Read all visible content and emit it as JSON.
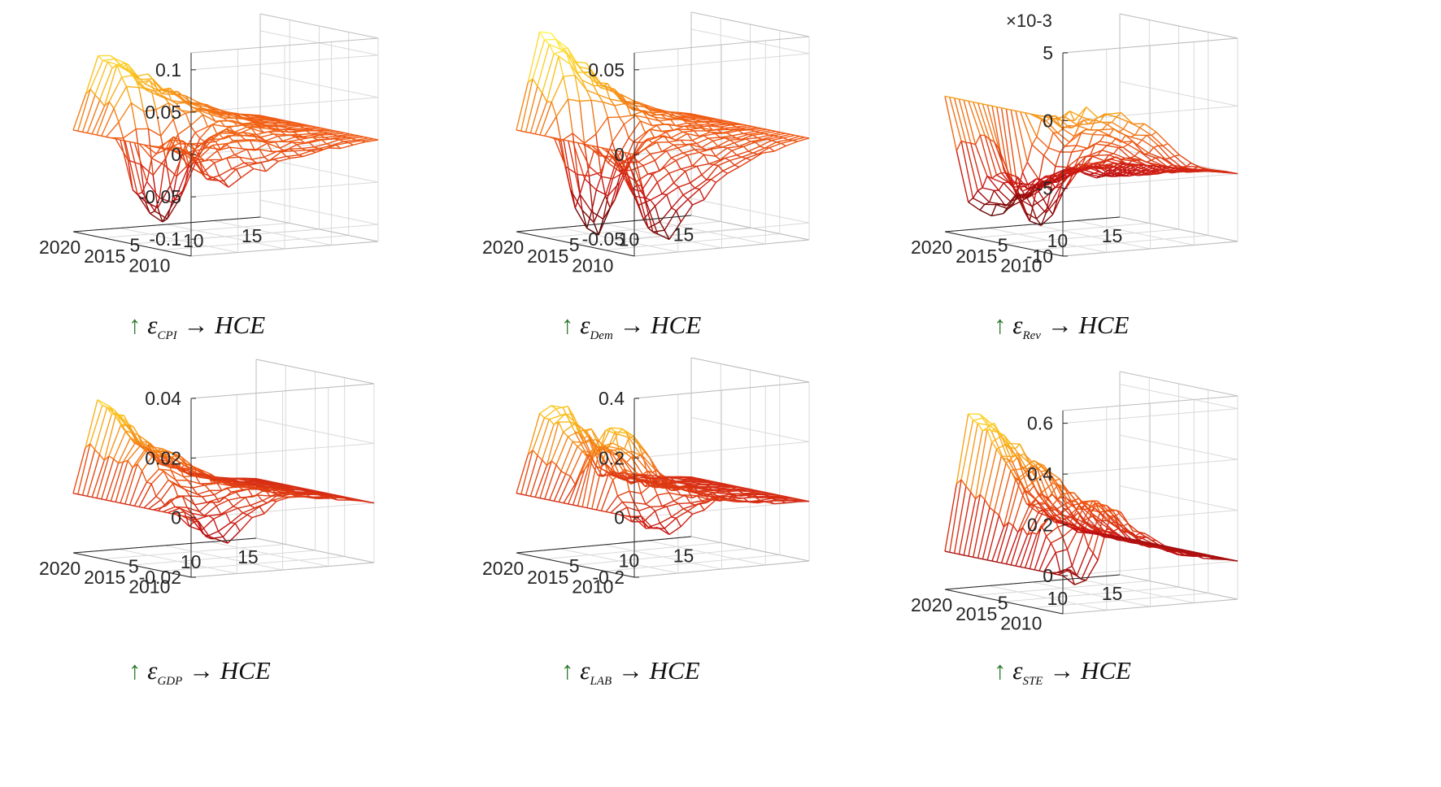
{
  "figure": {
    "panels": [
      {
        "id": "cpi",
        "caption": {
          "arrow": "↑",
          "symbol": "ε",
          "subscript": "CPI",
          "to": "→",
          "target": "HCE"
        }
      },
      {
        "id": "dem",
        "caption": {
          "arrow": "↑",
          "symbol": "ε",
          "subscript": "Dem",
          "to": "→",
          "target": "HCE"
        }
      },
      {
        "id": "rev",
        "caption": {
          "arrow": "↑",
          "symbol": "ε",
          "subscript": "Rev",
          "to": "→",
          "target": "HCE"
        }
      },
      {
        "id": "gdp",
        "caption": {
          "arrow": "↑",
          "symbol": "ε",
          "subscript": "GDP",
          "to": "→",
          "target": "HCE"
        }
      },
      {
        "id": "lab",
        "caption": {
          "arrow": "↑",
          "symbol": "ε",
          "subscript": "LAB",
          "to": "→",
          "target": "HCE"
        }
      },
      {
        "id": "ste",
        "caption": {
          "arrow": "↑",
          "symbol": "ε",
          "subscript": "STE",
          "to": "→",
          "target": "HCE"
        }
      }
    ]
  },
  "chart_data": [
    {
      "type": "surface",
      "title": "↑ ε_CPI → HCE",
      "year_ticks": [
        "2010",
        "2015",
        "2020"
      ],
      "horizon_ticks": [
        "5",
        "10",
        "15"
      ],
      "z_ticks": [
        "0.1",
        "0.05",
        "0",
        "-0.05",
        "-0.1"
      ],
      "zlim": [
        -0.12,
        0.12
      ],
      "z_exponent": "",
      "profile_early": [
        0.0,
        0.1,
        0.07,
        0.05,
        0.03,
        0.015,
        0.005,
        0.0
      ],
      "profile_late": [
        0.0,
        -0.04,
        -0.03,
        -0.02,
        -0.015,
        -0.008,
        -0.003,
        0.0
      ],
      "mid_peak": {
        "year_frac": 0.45,
        "value": -0.13
      }
    },
    {
      "type": "surface",
      "title": "↑ ε_Dem → HCE",
      "year_ticks": [
        "2010",
        "2015",
        "2020"
      ],
      "horizon_ticks": [
        "5",
        "10",
        "15"
      ],
      "z_ticks": [
        "0.05",
        "0",
        "-0.05"
      ],
      "zlim": [
        -0.06,
        0.06
      ],
      "z_exponent": "",
      "profile_early": [
        0.0,
        0.065,
        0.045,
        0.03,
        0.015,
        0.008,
        0.003,
        0.0
      ],
      "profile_late": [
        0.0,
        -0.055,
        -0.04,
        -0.025,
        -0.015,
        -0.008,
        -0.003,
        0.0
      ],
      "mid_peak": {
        "year_frac": 0.4,
        "value": -0.07
      }
    },
    {
      "type": "surface",
      "title": "↑ ε_Rev → HCE",
      "year_ticks": [
        "2010",
        "2015",
        "2020"
      ],
      "horizon_ticks": [
        "5",
        "10",
        "15"
      ],
      "z_ticks": [
        "5",
        "0",
        "-5",
        "-10"
      ],
      "zlim": [
        -10,
        5
      ],
      "z_exponent": "×10-3",
      "profile_early": [
        0.0,
        -8,
        -9,
        -8,
        -7,
        -6,
        -7,
        -6
      ],
      "profile_late": [
        0.0,
        0.5,
        0.2,
        -0.5,
        -2,
        -4,
        -4.5,
        -5
      ],
      "mid_peak": {
        "year_frac": 0.5,
        "value": -9.5
      }
    },
    {
      "type": "surface",
      "title": "↑ ε_GDP → HCE",
      "year_ticks": [
        "2010",
        "2015",
        "2020"
      ],
      "horizon_ticks": [
        "5",
        "10",
        "15"
      ],
      "z_ticks": [
        "0.04",
        "0.02",
        "0",
        "-0.02"
      ],
      "zlim": [
        -0.02,
        0.04
      ],
      "z_exponent": "",
      "profile_early": [
        0.0,
        0.035,
        0.02,
        0.01,
        0.005,
        0.002,
        0.001,
        0.0
      ],
      "profile_late": [
        0.0,
        -0.01,
        -0.005,
        0.002,
        0.004,
        0.003,
        0.002,
        0.0
      ],
      "mid_peak": {
        "year_frac": 0.4,
        "value": 0.018
      }
    },
    {
      "type": "surface",
      "title": "↑ ε_LAB → HCE",
      "year_ticks": [
        "2010",
        "2015",
        "2020"
      ],
      "horizon_ticks": [
        "5",
        "10",
        "15"
      ],
      "z_ticks": [
        "0.4",
        "0.2",
        "0",
        "-0.2"
      ],
      "zlim": [
        -0.2,
        0.4
      ],
      "z_exponent": "",
      "profile_early": [
        0.0,
        0.3,
        0.28,
        0.05,
        0.03,
        0.02,
        0.01,
        0.0
      ],
      "profile_late": [
        0.0,
        -0.06,
        -0.04,
        0.03,
        0.02,
        0.01,
        0.005,
        0.0
      ],
      "mid_peak": {
        "year_frac": 0.6,
        "value": 0.3
      }
    },
    {
      "type": "surface",
      "title": "↑ ε_STE → HCE",
      "year_ticks": [
        "2010",
        "2015",
        "2020"
      ],
      "horizon_ticks": [
        "5",
        "10",
        "15"
      ],
      "z_ticks": [
        "0.6",
        "0.4",
        "0.2",
        "0"
      ],
      "zlim": [
        -0.15,
        0.65
      ],
      "z_exponent": "",
      "profile_early": [
        0.0,
        0.6,
        0.45,
        0.2,
        0.1,
        0.05,
        0.02,
        0.0
      ],
      "profile_late": [
        0.0,
        -0.05,
        0.25,
        0.15,
        0.08,
        0.04,
        0.02,
        0.0
      ],
      "mid_peak": {
        "year_frac": 0.7,
        "value": 0.2
      }
    }
  ]
}
